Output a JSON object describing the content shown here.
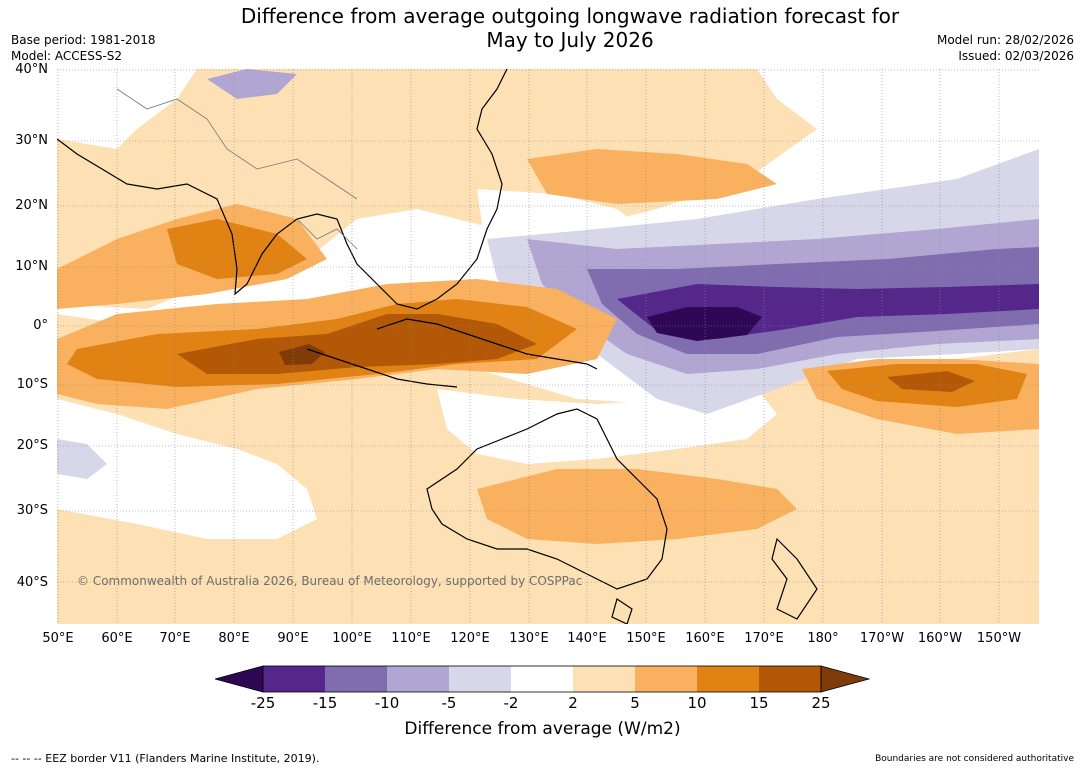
{
  "header": {
    "title_line1": "Difference from average outgoing longwave radiation forecast for",
    "title_line2": "May to July 2026",
    "base_period": "Base period: 1981-2018",
    "model": "Model: ACCESS-S2",
    "model_run": "Model run: 28/02/2026",
    "issued": "Issued: 02/03/2026"
  },
  "map": {
    "latitude_labels": [
      "40°N",
      "30°N",
      "20°N",
      "10°N",
      "0°",
      "10°S",
      "20°S",
      "30°S",
      "40°S"
    ],
    "longitude_labels": [
      "50°E",
      "60°E",
      "70°E",
      "80°E",
      "90°E",
      "100°E",
      "110°E",
      "120°E",
      "130°E",
      "140°E",
      "150°E",
      "160°E",
      "170°E",
      "180°",
      "170°W",
      "160°W",
      "150°W"
    ],
    "copyright": "© Commonwealth of Australia 2026, Bureau of Meteorology, supported by COSPPac"
  },
  "colorbar": {
    "title": "Difference from average (W/m2)",
    "tick_labels": [
      "-25",
      "-15",
      "-10",
      "-5",
      "-2",
      "2",
      "5",
      "10",
      "15",
      "25"
    ],
    "colors": [
      "#2e0854",
      "#55278b",
      "#7f6daf",
      "#b0a6d1",
      "#d8d7ea",
      "#ffffff",
      "#fde0b4",
      "#f9b15f",
      "#e08214",
      "#b35806",
      "#7f3b08"
    ]
  },
  "footer": {
    "eez_note": "--  --  -- EEZ border V11 (Flanders Marine Institute, 2019).",
    "boundary_note": "Boundaries are not considered authoritative"
  }
}
